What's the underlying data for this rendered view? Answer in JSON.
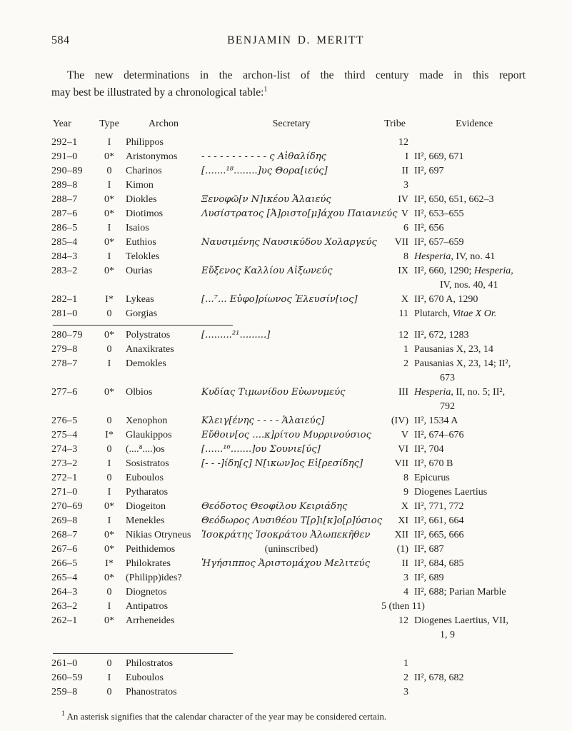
{
  "page": {
    "number": "584",
    "running_head": "BENJAMIN D. MERITT",
    "intro_line1": "The new determinations in the archon-list of the third century made in this report",
    "intro_line2": "may best be illustrated by a chronological table:",
    "intro_footnote_ref": "1",
    "footnote_marker": "1",
    "footnote_text": "An asterisk signifies that the calendar character of the year may be considered certain."
  },
  "table": {
    "headers": {
      "year": "Year",
      "type": "Type",
      "archon": "Archon",
      "secretary": "Secretary",
      "tribe": "Tribe",
      "evidence": "Evidence"
    },
    "rows": [
      {
        "year": "292–1",
        "type": "I",
        "archon": "Philippos",
        "secretary": "",
        "tribe": "12",
        "evidence": []
      },
      {
        "year": "291–0",
        "type": "0*",
        "archon": "Aristonymos",
        "secretary": "- - - - - - - - - - - ς Αἰθαλίδης",
        "tribe": "I",
        "evidence": [
          [
            "II², 669, 671",
            "n"
          ]
        ]
      },
      {
        "year": "290–89",
        "type": "0",
        "archon": "Charinos",
        "secretary": "[.......¹⁸........]υς Θορα[ιεύς]",
        "tribe": "II",
        "evidence": [
          [
            "II², 697",
            "n"
          ]
        ]
      },
      {
        "year": "289–8",
        "type": "I",
        "archon": "Kimon",
        "secretary": "",
        "tribe": "3",
        "evidence": []
      },
      {
        "year": "288–7",
        "type": "0*",
        "archon": "Diokles",
        "secretary": "Ξενοφῶ[ν Ν]ικέου Ἁλαιεύς",
        "tribe": "IV",
        "evidence": [
          [
            "II², 650, 651, 662–3",
            "n"
          ]
        ]
      },
      {
        "year": "287–6",
        "type": "0*",
        "archon": "Diotimos",
        "secretary": "Λυσίστρατος [Ἀ]ριστο[μ]άχου Παιανιεύς",
        "tribe": "V",
        "evidence": [
          [
            "II², 653–655",
            "n"
          ]
        ]
      },
      {
        "year": "286–5",
        "type": "I",
        "archon": "Isaios",
        "secretary": "",
        "tribe": "6",
        "evidence": [
          [
            "II², 656",
            "n"
          ]
        ]
      },
      {
        "year": "285–4",
        "type": "0*",
        "archon": "Euthios",
        "secretary": "Ναυσιμένης Ναυσικύδου Χολαργεύς",
        "tribe": "VII",
        "evidence": [
          [
            "II², 657–659",
            "n"
          ]
        ]
      },
      {
        "year": "284–3",
        "type": "I",
        "archon": "Telokles",
        "secretary": "",
        "tribe": "8",
        "evidence": [
          [
            "Hesperia",
            "i"
          ],
          [
            ", IV, no. 41",
            "n"
          ]
        ]
      },
      {
        "year": "283–2",
        "type": "0*",
        "archon": "Ourias",
        "secretary": "Εὔξενος Καλλίου Αἰξωνεύς",
        "tribe": "IX",
        "evidence": [
          [
            "II², 660, 1290; ",
            "n"
          ],
          [
            "Hesperia,",
            "i"
          ]
        ],
        "evidence2": "IV, nos. 40, 41"
      },
      {
        "year": "282–1",
        "type": "I*",
        "archon": "Lykeas",
        "secretary": "[...⁷... Εὐφο]ρίωνος Ἐλευσίν[ιος]",
        "tribe": "X",
        "evidence": [
          [
            "II², 670 A, 1290",
            "n"
          ]
        ]
      },
      {
        "year": "281–0",
        "type": "0",
        "archon": "Gorgias",
        "secretary": "",
        "tribe": "11",
        "evidence": [
          [
            "Plutarch, ",
            "n"
          ],
          [
            "Vitae X Or.",
            "i"
          ]
        ]
      },
      {
        "year": "280–79",
        "type": "0*",
        "archon": "Polystratos",
        "secretary": "[.........²¹.........]",
        "tribe": "12",
        "evidence": [
          [
            "II², 672, 1283",
            "n"
          ]
        ],
        "rule_above": true
      },
      {
        "year": "279–8",
        "type": "0",
        "archon": "Anaxikrates",
        "secretary": "",
        "tribe": "1",
        "evidence": [
          [
            "Pausanias X, 23, 14",
            "n"
          ]
        ]
      },
      {
        "year": "278–7",
        "type": "I",
        "archon": "Demokles",
        "secretary": "",
        "tribe": "2",
        "evidence": [
          [
            "Pausanias X, 23, 14; II²,",
            "n"
          ]
        ],
        "evidence2": "673"
      },
      {
        "year": "277–6",
        "type": "0*",
        "archon": "Olbios",
        "secretary": "Κυδίας Τιμωνίδου Εὐωνυμεύς",
        "tribe": "III",
        "evidence": [
          [
            "Hesperia",
            "i"
          ],
          [
            ", II, no. 5; II²,",
            "n"
          ]
        ],
        "evidence2": "792"
      },
      {
        "year": "276–5",
        "type": "0",
        "archon": "Xenophon",
        "secretary": "Κλειγ[ένης - - - - Ἁλαιεύς]",
        "tribe": "(IV)",
        "evidence": [
          [
            "II², 1534 A",
            "n"
          ]
        ]
      },
      {
        "year": "275–4",
        "type": "I*",
        "archon": "Glaukippos",
        "secretary": "Εὔθοιν[ος ....κ]ρίτου Μυρρινούσιος",
        "tribe": "V",
        "evidence": [
          [
            "II², 674–676",
            "n"
          ]
        ]
      },
      {
        "year": "274–3",
        "type": "0",
        "archon": "(....⁸....)os",
        "secretary": "[......¹⁶.......]ου Σουνιε[ύς]",
        "tribe": "VI",
        "evidence": [
          [
            "II², 704",
            "n"
          ]
        ]
      },
      {
        "year": "273–2",
        "type": "I",
        "archon": "Sosistratos",
        "secretary": "[- - -]ίδη[ς] Ν[ικων]ος Εἰ[ρεσίδης]",
        "tribe": "VII",
        "evidence": [
          [
            "II², 670 B",
            "n"
          ]
        ]
      },
      {
        "year": "272–1",
        "type": "0",
        "archon": "Euboulos",
        "secretary": "",
        "tribe": "8",
        "evidence": [
          [
            "Epicurus",
            "n"
          ]
        ]
      },
      {
        "year": "271–0",
        "type": "I",
        "archon": "Pytharatos",
        "secretary": "",
        "tribe": "9",
        "evidence": [
          [
            "Diogenes Laertius",
            "n"
          ]
        ]
      },
      {
        "year": "270–69",
        "type": "0*",
        "archon": "Diogeiton",
        "secretary": "Θεόδοτος Θεοφίλου Κειριάδης",
        "tribe": "X",
        "evidence": [
          [
            "II², 771, 772",
            "n"
          ]
        ]
      },
      {
        "year": "269–8",
        "type": "I",
        "archon": "Menekles",
        "secretary": "Θεόδωρος Λυσιθέου Τ[ρ]ι[κ]ο[ρ]ύσιος",
        "tribe": "XI",
        "evidence": [
          [
            "II², 661, 664",
            "n"
          ]
        ]
      },
      {
        "year": "268–7",
        "type": "0*",
        "archon": "Nikias Otryneus",
        "secretary": "Ἰσοκράτης Ἰσοκράτου Ἀλωπεκῆθεν",
        "tribe": "XII",
        "evidence": [
          [
            "II², 665, 666",
            "n"
          ]
        ]
      },
      {
        "year": "267–6",
        "type": "0*",
        "archon": "Peithidemos",
        "secretary": "(uninscribed)",
        "sec_center": true,
        "tribe": "(1)",
        "evidence": [
          [
            "II², 687",
            "n"
          ]
        ]
      },
      {
        "year": "266–5",
        "type": "I*",
        "archon": "Philokrates",
        "secretary": "Ἡγήσιππος Ἀριστομάχου Μελιτεύς",
        "tribe": "II",
        "evidence": [
          [
            "II², 684, 685",
            "n"
          ]
        ]
      },
      {
        "year": "265–4",
        "type": "0*",
        "archon": "(Philipp)ides?",
        "secretary": "",
        "tribe": "3",
        "evidence": [
          [
            "II², 689",
            "n"
          ]
        ]
      },
      {
        "year": "264–3",
        "type": "0",
        "archon": "Diognetos",
        "secretary": "",
        "tribe": "4",
        "evidence": [
          [
            "II², 688; Parian Marble",
            "n"
          ]
        ]
      },
      {
        "year": "263–2",
        "type": "I",
        "archon": "Antipatros",
        "secretary": "",
        "tribe": "5 (then 11)",
        "evidence": []
      },
      {
        "year": "262–1",
        "type": "0*",
        "archon": "Arrheneides",
        "secretary": "",
        "tribe": "12",
        "evidence": [
          [
            "Diogenes Laertius, VII,",
            "n"
          ]
        ],
        "evidence2": "1, 9"
      },
      {
        "year": "261–0",
        "type": "0",
        "archon": "Philostratos",
        "secretary": "",
        "tribe": "1",
        "evidence": [],
        "rule_above": true,
        "gap_above": true
      },
      {
        "year": "260–59",
        "type": "I",
        "archon": "Euboulos",
        "secretary": "",
        "tribe": "2",
        "evidence": [
          [
            "II², 678, 682",
            "n"
          ]
        ]
      },
      {
        "year": "259–8",
        "type": "0",
        "archon": "Phanostratos",
        "secretary": "",
        "tribe": "3",
        "evidence": []
      }
    ]
  }
}
